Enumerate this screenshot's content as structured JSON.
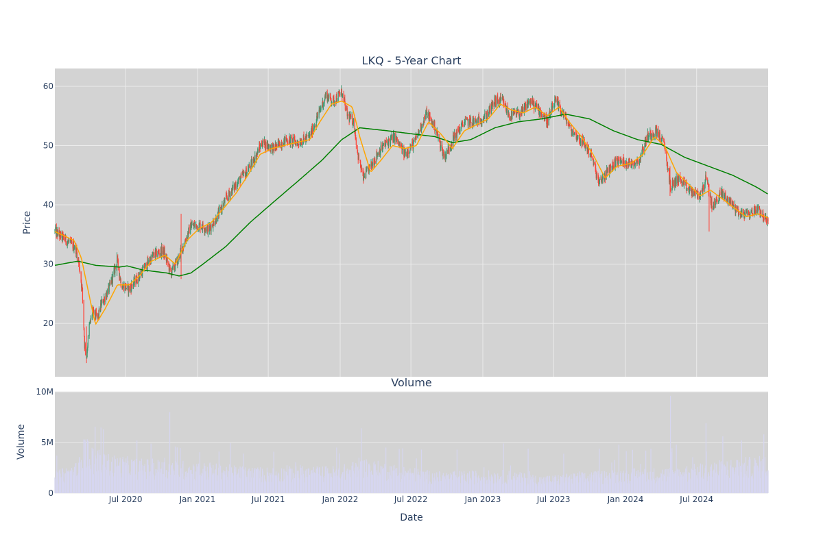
{
  "chart_data": [
    {
      "type": "candlestick",
      "title": "LKQ - 5-Year Chart",
      "ylabel": "Price",
      "ylim": [
        11,
        63
      ],
      "xlim": [
        "2020-01-02",
        "2024-12-31"
      ],
      "y_ticks": [
        20,
        30,
        40,
        50,
        60
      ],
      "grid": true,
      "legend": "none",
      "colors": {
        "up": "#3d9970",
        "down": "#ff4136",
        "ma_short": "#ffa500",
        "ma_long": "#008000",
        "plot_bg": "#d3d3d3",
        "grid": "#ebebeb"
      },
      "price_path": [
        [
          "2020-01-02",
          35.5
        ],
        [
          "2020-01-20",
          34.6
        ],
        [
          "2020-02-10",
          33.5
        ],
        [
          "2020-02-24",
          32.8
        ],
        [
          "2020-03-05",
          29.5
        ],
        [
          "2020-03-12",
          25.5
        ],
        [
          "2020-03-18",
          16.5
        ],
        [
          "2020-03-23",
          14.5
        ],
        [
          "2020-03-30",
          19.5
        ],
        [
          "2020-04-08",
          22.0
        ],
        [
          "2020-04-20",
          20.8
        ],
        [
          "2020-05-01",
          23.5
        ],
        [
          "2020-05-18",
          25.5
        ],
        [
          "2020-06-01",
          28.5
        ],
        [
          "2020-06-09",
          30.8
        ],
        [
          "2020-06-20",
          26.5
        ],
        [
          "2020-07-10",
          25.8
        ],
        [
          "2020-07-30",
          27.5
        ],
        [
          "2020-08-20",
          29.5
        ],
        [
          "2020-09-10",
          31.5
        ],
        [
          "2020-10-05",
          32.3
        ],
        [
          "2020-10-25",
          28.5
        ],
        [
          "2020-11-10",
          30.5
        ],
        [
          "2020-11-25",
          33.0
        ],
        [
          "2020-12-15",
          36.5
        ],
        [
          "2021-01-10",
          36.5
        ],
        [
          "2021-01-30",
          35.8
        ],
        [
          "2021-02-20",
          38.0
        ],
        [
          "2021-03-15",
          41.0
        ],
        [
          "2021-04-10",
          43.5
        ],
        [
          "2021-05-05",
          45.5
        ],
        [
          "2021-05-25",
          47.5
        ],
        [
          "2021-06-15",
          50.5
        ],
        [
          "2021-07-15",
          49.5
        ],
        [
          "2021-08-15",
          51.0
        ],
        [
          "2021-09-15",
          50.5
        ],
        [
          "2021-10-15",
          51.5
        ],
        [
          "2021-11-05",
          55.0
        ],
        [
          "2021-11-25",
          58.5
        ],
        [
          "2021-12-15",
          57.5
        ],
        [
          "2022-01-05",
          59.0
        ],
        [
          "2022-01-20",
          55.0
        ],
        [
          "2022-02-05",
          54.0
        ],
        [
          "2022-02-15",
          48.5
        ],
        [
          "2022-03-01",
          44.5
        ],
        [
          "2022-03-20",
          46.5
        ],
        [
          "2022-04-10",
          49.0
        ],
        [
          "2022-05-01",
          50.5
        ],
        [
          "2022-05-20",
          51.5
        ],
        [
          "2022-06-15",
          48.5
        ],
        [
          "2022-07-10",
          50.5
        ],
        [
          "2022-08-10",
          55.5
        ],
        [
          "2022-09-01",
          53.0
        ],
        [
          "2022-09-25",
          48.0
        ],
        [
          "2022-10-20",
          51.5
        ],
        [
          "2022-11-15",
          54.0
        ],
        [
          "2022-12-15",
          54.0
        ],
        [
          "2023-01-10",
          55.0
        ],
        [
          "2023-02-01",
          57.5
        ],
        [
          "2023-02-20",
          57.5
        ],
        [
          "2023-03-10",
          55.0
        ],
        [
          "2023-04-10",
          55.5
        ],
        [
          "2023-05-01",
          57.5
        ],
        [
          "2023-05-25",
          56.0
        ],
        [
          "2023-06-15",
          54.0
        ],
        [
          "2023-07-05",
          57.5
        ],
        [
          "2023-07-25",
          55.5
        ],
        [
          "2023-08-15",
          52.5
        ],
        [
          "2023-09-15",
          50.5
        ],
        [
          "2023-10-05",
          48.5
        ],
        [
          "2023-10-25",
          43.5
        ],
        [
          "2023-11-15",
          45.5
        ],
        [
          "2023-12-10",
          47.5
        ],
        [
          "2024-01-15",
          47.0
        ],
        [
          "2024-02-05",
          47.5
        ],
        [
          "2024-02-25",
          51.5
        ],
        [
          "2024-03-20",
          52.5
        ],
        [
          "2024-04-10",
          50.0
        ],
        [
          "2024-04-25",
          43.0
        ],
        [
          "2024-05-15",
          44.5
        ],
        [
          "2024-06-10",
          42.5
        ],
        [
          "2024-07-10",
          41.5
        ],
        [
          "2024-07-25",
          44.5
        ],
        [
          "2024-08-10",
          39.5
        ],
        [
          "2024-09-01",
          42.0
        ],
        [
          "2024-09-25",
          40.5
        ],
        [
          "2024-10-20",
          38.5
        ],
        [
          "2024-11-15",
          38.5
        ],
        [
          "2024-12-05",
          39.5
        ],
        [
          "2024-12-31",
          36.8
        ]
      ],
      "spikes": [
        {
          "date": "2020-03-23",
          "low": 13.3,
          "high": 19.5
        },
        {
          "date": "2020-06-09",
          "low": 28.0,
          "high": 32.0
        },
        {
          "date": "2020-11-20",
          "low": 27.5,
          "high": 38.5
        },
        {
          "date": "2024-04-24",
          "low": 41.5,
          "high": 46.5
        },
        {
          "date": "2024-08-02",
          "low": 35.5,
          "high": 43.5
        }
      ],
      "ma_short_path": [
        [
          "2020-01-02",
          35.5
        ],
        [
          "2020-02-20",
          34.0
        ],
        [
          "2020-03-10",
          31.0
        ],
        [
          "2020-04-01",
          24.0
        ],
        [
          "2020-04-15",
          19.8
        ],
        [
          "2020-05-10",
          22.5
        ],
        [
          "2020-06-10",
          26.5
        ],
        [
          "2020-07-10",
          26.5
        ],
        [
          "2020-08-05",
          28.0
        ],
        [
          "2020-09-05",
          30.5
        ],
        [
          "2020-10-10",
          31.5
        ],
        [
          "2020-11-05",
          30.0
        ],
        [
          "2020-12-05",
          34.0
        ],
        [
          "2021-01-05",
          36.0
        ],
        [
          "2021-02-05",
          37.0
        ],
        [
          "2021-03-10",
          39.5
        ],
        [
          "2021-04-10",
          42.0
        ],
        [
          "2021-05-10",
          45.0
        ],
        [
          "2021-06-10",
          48.5
        ],
        [
          "2021-07-10",
          49.5
        ],
        [
          "2021-08-10",
          50.0
        ],
        [
          "2021-09-10",
          50.5
        ],
        [
          "2021-10-15",
          51.0
        ],
        [
          "2021-11-10",
          54.0
        ],
        [
          "2021-12-10",
          57.0
        ],
        [
          "2022-01-05",
          57.5
        ],
        [
          "2022-02-01",
          56.5
        ],
        [
          "2022-02-20",
          51.5
        ],
        [
          "2022-03-20",
          45.5
        ],
        [
          "2022-04-15",
          47.5
        ],
        [
          "2022-05-15",
          50.0
        ],
        [
          "2022-06-15",
          49.5
        ],
        [
          "2022-07-15",
          50.0
        ],
        [
          "2022-08-15",
          54.0
        ],
        [
          "2022-09-15",
          52.0
        ],
        [
          "2022-10-15",
          49.5
        ],
        [
          "2022-11-15",
          52.5
        ],
        [
          "2022-12-15",
          53.5
        ],
        [
          "2023-01-15",
          54.5
        ],
        [
          "2023-02-15",
          57.0
        ],
        [
          "2023-03-15",
          56.0
        ],
        [
          "2023-04-15",
          55.5
        ],
        [
          "2023-05-15",
          56.5
        ],
        [
          "2023-06-15",
          55.0
        ],
        [
          "2023-07-15",
          56.5
        ],
        [
          "2023-08-10",
          54.0
        ],
        [
          "2023-09-10",
          51.5
        ],
        [
          "2023-10-10",
          48.5
        ],
        [
          "2023-11-10",
          44.5
        ],
        [
          "2023-12-10",
          46.5
        ],
        [
          "2024-01-15",
          47.0
        ],
        [
          "2024-02-15",
          48.5
        ],
        [
          "2024-03-15",
          51.5
        ],
        [
          "2024-04-10",
          50.0
        ],
        [
          "2024-05-10",
          45.5
        ],
        [
          "2024-06-10",
          43.5
        ],
        [
          "2024-07-10",
          41.5
        ],
        [
          "2024-08-05",
          42.5
        ],
        [
          "2024-09-05",
          41.0
        ],
        [
          "2024-10-05",
          39.5
        ],
        [
          "2024-11-05",
          38.0
        ],
        [
          "2024-12-05",
          38.5
        ],
        [
          "2024-12-31",
          37.8
        ]
      ],
      "ma_long_path": [
        [
          "2020-01-02",
          29.8
        ],
        [
          "2020-03-01",
          30.5
        ],
        [
          "2020-04-15",
          29.8
        ],
        [
          "2020-06-15",
          29.5
        ],
        [
          "2020-07-05",
          29.7
        ],
        [
          "2020-08-15",
          29.0
        ],
        [
          "2020-10-15",
          28.5
        ],
        [
          "2020-11-15",
          28.0
        ],
        [
          "2020-12-15",
          28.5
        ],
        [
          "2021-01-15",
          30.0
        ],
        [
          "2021-03-15",
          33.0
        ],
        [
          "2021-05-15",
          37.0
        ],
        [
          "2021-07-15",
          40.5
        ],
        [
          "2021-09-15",
          44.0
        ],
        [
          "2021-11-15",
          47.5
        ],
        [
          "2022-01-05",
          51.0
        ],
        [
          "2022-02-20",
          53.0
        ],
        [
          "2022-05-01",
          52.5
        ],
        [
          "2022-07-01",
          52.0
        ],
        [
          "2022-09-01",
          51.5
        ],
        [
          "2022-10-15",
          50.5
        ],
        [
          "2022-12-01",
          51.0
        ],
        [
          "2023-02-01",
          53.0
        ],
        [
          "2023-04-01",
          54.0
        ],
        [
          "2023-06-01",
          54.5
        ],
        [
          "2023-08-01",
          55.3
        ],
        [
          "2023-10-01",
          54.5
        ],
        [
          "2023-12-01",
          52.5
        ],
        [
          "2024-02-01",
          51.0
        ],
        [
          "2024-04-01",
          50.2
        ],
        [
          "2024-06-01",
          48.0
        ],
        [
          "2024-08-01",
          46.5
        ],
        [
          "2024-10-01",
          45.0
        ],
        [
          "2024-12-01",
          43.0
        ],
        [
          "2024-12-31",
          41.8
        ]
      ]
    },
    {
      "type": "bar",
      "title": "Volume",
      "xlabel": "Date",
      "ylabel": "Volume",
      "ylim": [
        0,
        10000000
      ],
      "y_ticks": [
        {
          "value": 0,
          "label": "0"
        },
        {
          "value": 5000000,
          "label": "5M"
        },
        {
          "value": 10000000,
          "label": "10M"
        }
      ],
      "x_ticks": [
        {
          "date": "2020-07-01",
          "label": "Jul 2020"
        },
        {
          "date": "2021-01-01",
          "label": "Jan 2021"
        },
        {
          "date": "2021-07-01",
          "label": "Jul 2021"
        },
        {
          "date": "2022-01-01",
          "label": "Jan 2022"
        },
        {
          "date": "2022-07-01",
          "label": "Jul 2022"
        },
        {
          "date": "2023-01-01",
          "label": "Jan 2023"
        },
        {
          "date": "2023-07-01",
          "label": "Jul 2023"
        },
        {
          "date": "2024-01-01",
          "label": "Jan 2024"
        },
        {
          "date": "2024-07-01",
          "label": "Jul 2024"
        }
      ],
      "colors": {
        "bar": "#d6d6f0",
        "plot_bg": "#d3d3d3",
        "grid": "#ebebeb"
      },
      "baseline_path": [
        [
          "2020-01-02",
          1500000
        ],
        [
          "2020-03-01",
          2200000
        ],
        [
          "2020-03-20",
          3800000
        ],
        [
          "2020-05-01",
          2800000
        ],
        [
          "2020-08-01",
          2400000
        ],
        [
          "2020-11-01",
          2300000
        ],
        [
          "2021-06-01",
          1800000
        ],
        [
          "2022-01-01",
          1900000
        ],
        [
          "2022-03-01",
          2400000
        ],
        [
          "2022-09-01",
          1500000
        ],
        [
          "2023-03-01",
          1600000
        ],
        [
          "2023-06-01",
          1200000
        ],
        [
          "2024-01-01",
          1700000
        ],
        [
          "2024-05-01",
          1800000
        ],
        [
          "2024-10-01",
          2400000
        ],
        [
          "2024-12-31",
          2600000
        ]
      ],
      "spikes": [
        {
          "date": "2020-03-16",
          "value": 5300000
        },
        {
          "date": "2020-03-20",
          "value": 5100000
        },
        {
          "date": "2020-05-05",
          "value": 6300000
        },
        {
          "date": "2020-07-30",
          "value": 5200000
        },
        {
          "date": "2020-10-22",
          "value": 8000000
        },
        {
          "date": "2020-11-05",
          "value": 4600000
        },
        {
          "date": "2021-02-25",
          "value": 4100000
        },
        {
          "date": "2021-04-28",
          "value": 3900000
        },
        {
          "date": "2022-02-24",
          "value": 6400000
        },
        {
          "date": "2022-04-28",
          "value": 4500000
        },
        {
          "date": "2022-07-28",
          "value": 4300000
        },
        {
          "date": "2022-10-27",
          "value": 4300000
        },
        {
          "date": "2023-02-23",
          "value": 4900000
        },
        {
          "date": "2023-04-27",
          "value": 4400000
        },
        {
          "date": "2023-07-27",
          "value": 3900000
        },
        {
          "date": "2023-10-26",
          "value": 4400000
        },
        {
          "date": "2023-12-15",
          "value": 4800000
        },
        {
          "date": "2024-02-22",
          "value": 4200000
        },
        {
          "date": "2024-04-25",
          "value": 9600000
        },
        {
          "date": "2024-05-10",
          "value": 4800000
        },
        {
          "date": "2024-07-25",
          "value": 6900000
        },
        {
          "date": "2024-10-24",
          "value": 5200000
        },
        {
          "date": "2024-12-20",
          "value": 5800000
        }
      ]
    }
  ]
}
